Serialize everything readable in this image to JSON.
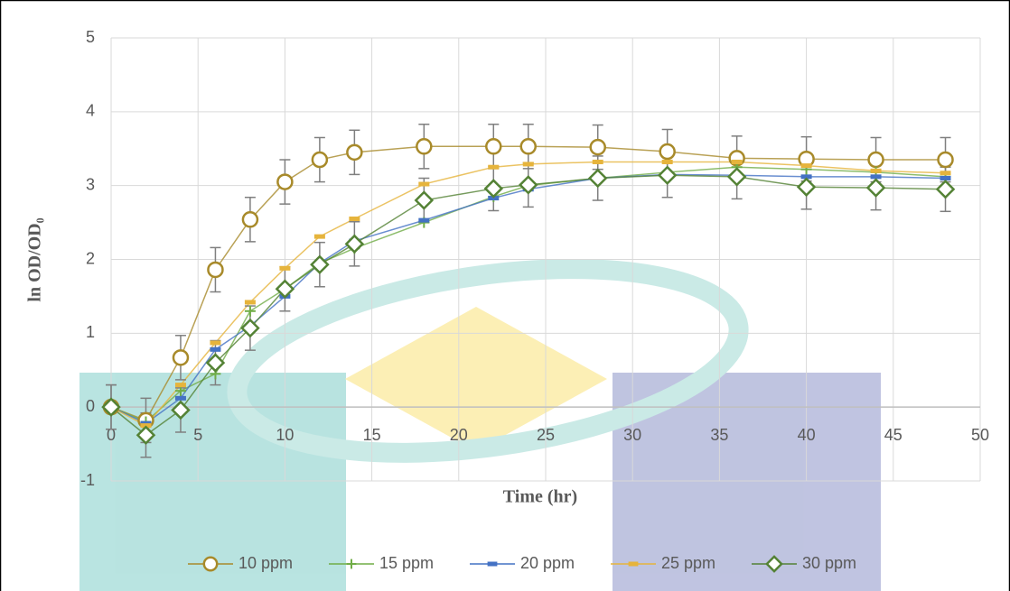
{
  "chart_data": {
    "type": "line",
    "x_label": "Time (hr)",
    "y_label": "ln OD/OD₀",
    "x": [
      0,
      2,
      4,
      6,
      8,
      10,
      12,
      14,
      18,
      22,
      24,
      28,
      32,
      36,
      40,
      44,
      48
    ],
    "xlim": [
      0,
      50
    ],
    "xticks": [
      0,
      5,
      10,
      15,
      20,
      25,
      30,
      35,
      40,
      45,
      50
    ],
    "ylim": [
      -1,
      5
    ],
    "yticks": [
      -1,
      0,
      1,
      2,
      3,
      4,
      5
    ],
    "grid": true,
    "legend": "bottom",
    "series": [
      {
        "name": "10 ppm",
        "color": "#a88a2a",
        "marker": "circle",
        "values": [
          0,
          -0.18,
          0.67,
          1.86,
          2.54,
          3.05,
          3.35,
          3.45,
          3.53,
          3.53,
          3.53,
          3.52,
          3.46,
          3.37,
          3.36,
          3.35,
          3.35
        ],
        "errors": [
          0.3,
          0.3,
          0.3,
          0.3,
          0.3,
          0.3,
          0.3,
          0.3,
          0.3,
          0.3,
          0.3,
          0.3,
          0.3,
          0.3,
          0.3,
          0.3,
          0.3
        ]
      },
      {
        "name": "15 ppm",
        "color": "#70ad47",
        "marker": "plus",
        "values": [
          0,
          -0.2,
          0.22,
          0.45,
          1.3,
          1.6,
          1.95,
          2.15,
          2.5,
          2.85,
          3.0,
          3.1,
          3.18,
          3.25,
          3.22,
          3.18,
          3.12
        ]
      },
      {
        "name": "20 ppm",
        "color": "#4472c4",
        "marker": "dash",
        "values": [
          0,
          -0.22,
          0.12,
          0.78,
          1.1,
          1.5,
          1.95,
          2.25,
          2.53,
          2.83,
          2.95,
          3.1,
          3.15,
          3.14,
          3.12,
          3.12,
          3.1
        ]
      },
      {
        "name": "25 ppm",
        "color": "#e6b43c",
        "marker": "dash",
        "values": [
          0,
          -0.25,
          0.3,
          0.87,
          1.42,
          1.88,
          2.31,
          2.55,
          3.02,
          3.25,
          3.29,
          3.32,
          3.32,
          3.32,
          3.27,
          3.2,
          3.17
        ]
      },
      {
        "name": "30 ppm",
        "color": "#548235",
        "marker": "diamond",
        "values": [
          0,
          -0.38,
          -0.04,
          0.6,
          1.07,
          1.6,
          1.93,
          2.21,
          2.8,
          2.96,
          3.01,
          3.1,
          3.14,
          3.12,
          2.98,
          2.97,
          2.95
        ],
        "errors": [
          0.3,
          0.3,
          0.3,
          0.3,
          0.3,
          0.3,
          0.3,
          0.3,
          0.3,
          0.3,
          0.3,
          0.3,
          0.3,
          0.3,
          0.3,
          0.3,
          0.3
        ]
      }
    ]
  }
}
